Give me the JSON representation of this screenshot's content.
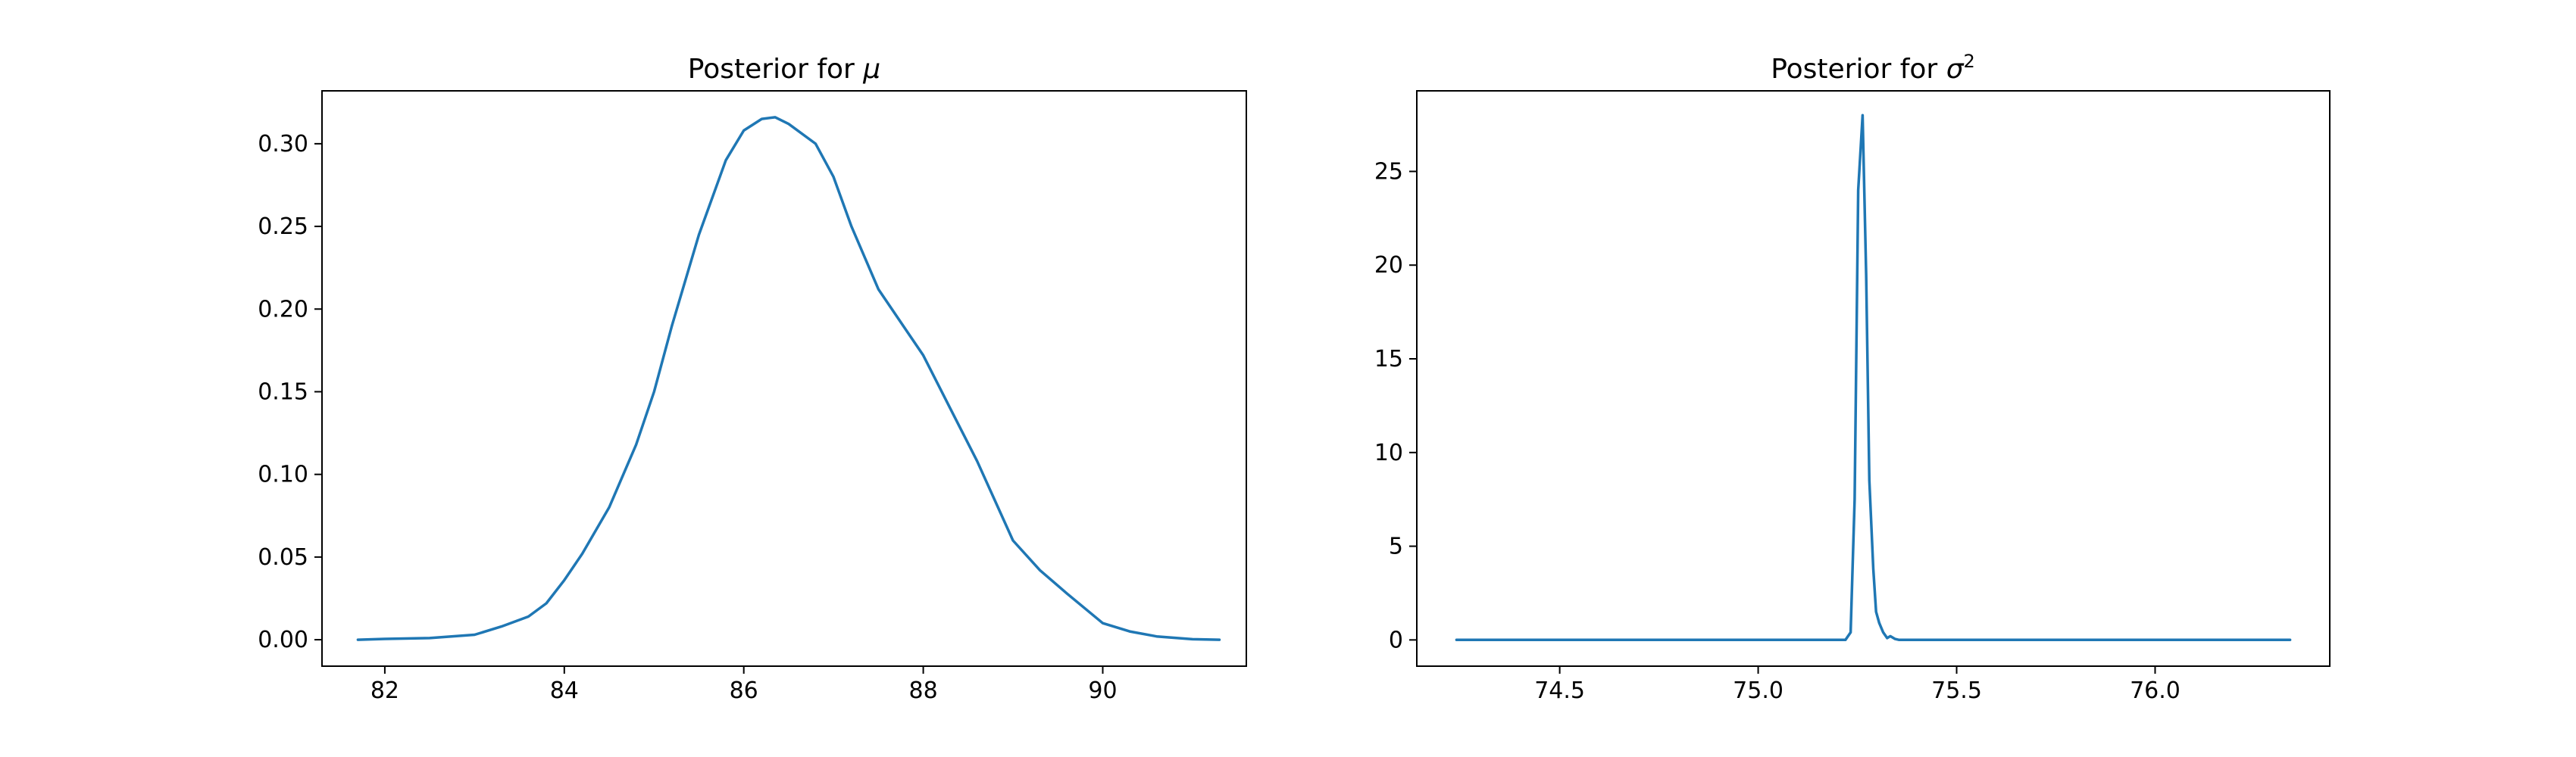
{
  "colors": {
    "line": "#1f77b4",
    "frame": "#000000",
    "background": "#ffffff"
  },
  "chart_data": [
    {
      "type": "line",
      "title": "Posterior for μ",
      "title_parts": {
        "text": "Posterior for ",
        "symbol": "μ",
        "superscript": ""
      },
      "xlabel": "",
      "ylabel": "",
      "xlim": [
        81.3,
        91.6
      ],
      "ylim": [
        -0.016,
        0.332
      ],
      "xticks": [
        82,
        84,
        86,
        88,
        90
      ],
      "xtick_labels": [
        "82",
        "84",
        "86",
        "88",
        "90"
      ],
      "yticks": [
        0.0,
        0.05,
        0.1,
        0.15,
        0.2,
        0.25,
        0.3
      ],
      "ytick_labels": [
        "0.00",
        "0.05",
        "0.10",
        "0.15",
        "0.20",
        "0.25",
        "0.30"
      ],
      "grid": false,
      "legend": "none",
      "series": [
        {
          "x": [
            81.7,
            82.0,
            82.5,
            83.0,
            83.3,
            83.6,
            83.8,
            84.0,
            84.2,
            84.5,
            84.8,
            85.0,
            85.2,
            85.5,
            85.8,
            86.0,
            86.2,
            86.35,
            86.5,
            86.8,
            87.0,
            87.2,
            87.5,
            87.8,
            88.0,
            88.3,
            88.6,
            89.0,
            89.3,
            89.6,
            90.0,
            90.3,
            90.6,
            91.0,
            91.3
          ],
          "y": [
            0.0,
            0.0005,
            0.001,
            0.003,
            0.008,
            0.014,
            0.022,
            0.036,
            0.052,
            0.08,
            0.118,
            0.15,
            0.19,
            0.245,
            0.29,
            0.308,
            0.315,
            0.316,
            0.312,
            0.3,
            0.28,
            0.25,
            0.212,
            0.188,
            0.172,
            0.14,
            0.108,
            0.06,
            0.042,
            0.028,
            0.01,
            0.005,
            0.002,
            0.0003,
            0.0
          ]
        }
      ]
    },
    {
      "type": "line",
      "title": "Posterior for σ²",
      "title_parts": {
        "text": "Posterior for ",
        "symbol": "σ",
        "superscript": "2"
      },
      "xlabel": "",
      "ylabel": "",
      "xlim": [
        74.14,
        76.44
      ],
      "ylim": [
        -1.4,
        29.3
      ],
      "xticks": [
        74.5,
        75.0,
        75.5,
        76.0
      ],
      "xtick_labels": [
        "74.5",
        "75.0",
        "75.5",
        "76.0"
      ],
      "yticks": [
        0,
        5,
        10,
        15,
        20,
        25
      ],
      "ytick_labels": [
        "0",
        "5",
        "10",
        "15",
        "20",
        "25"
      ],
      "grid": false,
      "legend": "none",
      "series": [
        {
          "x": [
            74.24,
            75.22,
            75.233,
            75.243,
            75.252,
            75.263,
            75.272,
            75.28,
            75.29,
            75.297,
            75.305,
            75.315,
            75.325,
            75.333,
            75.345,
            75.355,
            76.34
          ],
          "y": [
            0,
            0,
            0.4,
            7.5,
            24.0,
            28.0,
            19.5,
            8.5,
            3.8,
            1.5,
            0.9,
            0.4,
            0.1,
            0.2,
            0.05,
            0,
            0
          ]
        }
      ]
    }
  ]
}
